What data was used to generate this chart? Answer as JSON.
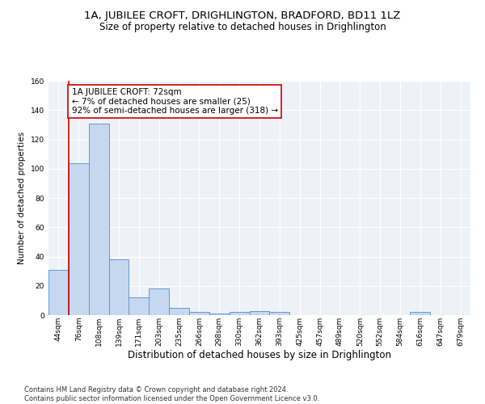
{
  "title_line1": "1A, JUBILEE CROFT, DRIGHLINGTON, BRADFORD, BD11 1LZ",
  "title_line2": "Size of property relative to detached houses in Drighlington",
  "xlabel": "Distribution of detached houses by size in Drighlington",
  "ylabel": "Number of detached properties",
  "footnote": "Contains HM Land Registry data © Crown copyright and database right 2024.\nContains public sector information licensed under the Open Government Licence v3.0.",
  "bin_labels": [
    "44sqm",
    "76sqm",
    "108sqm",
    "139sqm",
    "171sqm",
    "203sqm",
    "235sqm",
    "266sqm",
    "298sqm",
    "330sqm",
    "362sqm",
    "393sqm",
    "425sqm",
    "457sqm",
    "489sqm",
    "520sqm",
    "552sqm",
    "584sqm",
    "616sqm",
    "647sqm",
    "679sqm"
  ],
  "bar_values": [
    31,
    104,
    131,
    38,
    12,
    18,
    5,
    2,
    1,
    2,
    3,
    2,
    0,
    0,
    0,
    0,
    0,
    0,
    2,
    0,
    0
  ],
  "bar_color": "#c5d8f0",
  "bar_edge_color": "#5b9bd5",
  "ylim": [
    0,
    160
  ],
  "yticks": [
    0,
    20,
    40,
    60,
    80,
    100,
    120,
    140,
    160
  ],
  "vline_x": 1.0,
  "vline_color": "#cc0000",
  "annotation_text": "1A JUBILEE CROFT: 72sqm\n← 7% of detached houses are smaller (25)\n92% of semi-detached houses are larger (318) →",
  "annotation_box_color": "#ffffff",
  "annotation_box_edge": "#cc0000",
  "background_color": "#eef2f8",
  "grid_color": "#ffffff",
  "title1_fontsize": 9.5,
  "title2_fontsize": 8.5,
  "xlabel_fontsize": 8.5,
  "ylabel_fontsize": 7.5,
  "annotation_fontsize": 7.5,
  "footnote_fontsize": 6.0,
  "tick_fontsize": 6.5
}
